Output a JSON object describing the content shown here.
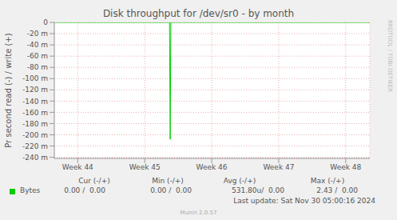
{
  "chart_data": {
    "type": "line",
    "title": "Disk throughput for /dev/sr0 - by month",
    "y_label": "Pr second read (-) / write (+)",
    "x": [
      43.65,
      45.37,
      45.38,
      45.39,
      48.36
    ],
    "series": [
      {
        "name": "Bytes",
        "color": "#00cc00",
        "values": [
          0,
          0,
          -0.208,
          0,
          0
        ]
      }
    ],
    "xlim": [
      43.65,
      48.36
    ],
    "xticks": [
      {
        "value": 44,
        "label": "Week 44"
      },
      {
        "value": 45,
        "label": "Week 45"
      },
      {
        "value": 46,
        "label": "Week 46"
      },
      {
        "value": 47,
        "label": "Week 47"
      },
      {
        "value": 48,
        "label": "Week 48"
      }
    ],
    "ylim": [
      -0.242,
      0
    ],
    "yticks": [
      0,
      {
        "value": -0.02,
        "label": "-20 m"
      },
      {
        "value": -0.04,
        "label": "-40 m"
      },
      {
        "value": -0.06,
        "label": "-60 m"
      },
      {
        "value": -0.08,
        "label": "-80 m"
      },
      {
        "value": -0.1,
        "label": "-100 m"
      },
      {
        "value": -0.12,
        "label": "-120 m"
      },
      {
        "value": -0.14,
        "label": "-140 m"
      },
      {
        "value": -0.16,
        "label": "-160 m"
      },
      {
        "value": -0.18,
        "label": "-180 m"
      },
      {
        "value": -0.2,
        "label": "-200 m"
      },
      {
        "value": -0.22,
        "label": "-220 m"
      },
      {
        "value": -0.24,
        "label": "-240 m"
      }
    ],
    "grid": true,
    "legend_table": {
      "header": [
        "Cur (-/+)",
        "Min (-/+)",
        "Avg (-/+)",
        "Max (-/+)"
      ],
      "values": [
        "0.00 /  0.00",
        "0.00 /  0.00",
        "531.80u/  0.00",
        "2.43 /  0.00"
      ]
    },
    "footer": "Last update: Sat Nov 30 05:00:16 2024",
    "credit": "Munin 2.0.57",
    "watermark": "RRDTOOL / TOBI OETIKER"
  }
}
